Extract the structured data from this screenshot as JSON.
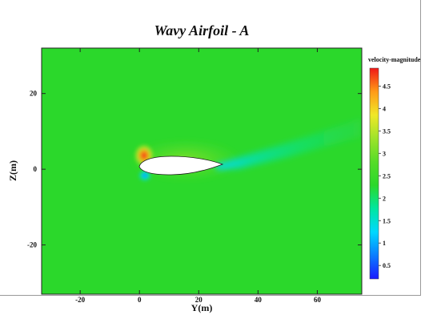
{
  "chart_data": {
    "type": "heatmap",
    "title": "Wavy Airfoil - A",
    "xlabel": "Y(m)",
    "ylabel": "Z(m)",
    "xlim": [
      -33,
      75
    ],
    "ylim": [
      -33,
      32
    ],
    "x_ticks": [
      {
        "value": -20,
        "label": "-20"
      },
      {
        "value": 0,
        "label": "0"
      },
      {
        "value": 20,
        "label": "20"
      },
      {
        "value": 40,
        "label": "40"
      },
      {
        "value": 60,
        "label": "60"
      }
    ],
    "y_ticks": [
      {
        "value": 20,
        "label": "20"
      },
      {
        "value": 0,
        "label": "0"
      },
      {
        "value": -20,
        "label": "-20"
      }
    ],
    "colorbar": {
      "label": "velocity-magnitude",
      "range": [
        0.2,
        4.9
      ],
      "levels": [
        {
          "value": 4.5,
          "label": "4.5"
        },
        {
          "value": 4.0,
          "label": "4"
        },
        {
          "value": 3.5,
          "label": "3.5"
        },
        {
          "value": 3.0,
          "label": "3"
        },
        {
          "value": 2.5,
          "label": "2.5"
        },
        {
          "value": 2.0,
          "label": "2"
        },
        {
          "value": 1.5,
          "label": "1.5"
        },
        {
          "value": 1.0,
          "label": "1"
        },
        {
          "value": 0.5,
          "label": "0.5"
        }
      ],
      "colors": [
        "#1a1aff",
        "#0a7cff",
        "#00d8ff",
        "#00e6a0",
        "#2bd82b",
        "#56dc28",
        "#9ee32a",
        "#f0e827",
        "#ff9a17",
        "#f01818"
      ]
    },
    "freestream_velocity": 2.4,
    "airfoil": {
      "leading_edge_y": 0,
      "trailing_edge_y": 27,
      "chord": 27
    },
    "features": [
      {
        "name": "stagnation-high",
        "y": -0.5,
        "z": 2.5,
        "value": 4.7
      },
      {
        "name": "lower-surface-low",
        "y": 1,
        "z": -2,
        "value": 1.2
      },
      {
        "name": "wake-deficit",
        "y": 32,
        "z": 1.5,
        "value": 1.6
      }
    ]
  }
}
